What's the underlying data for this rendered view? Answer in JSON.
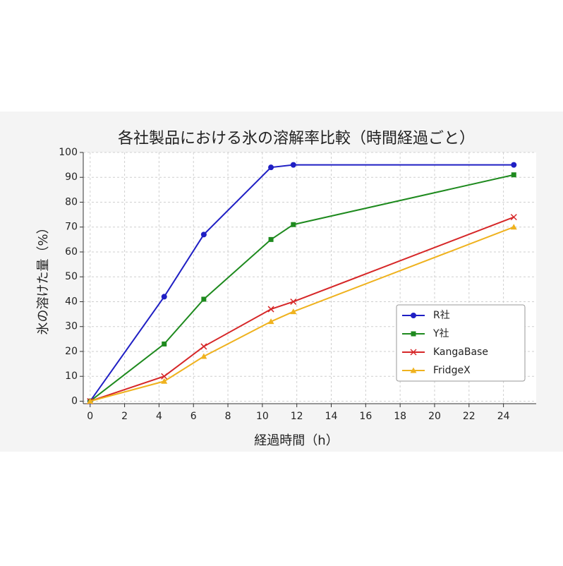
{
  "chart_data": {
    "type": "line",
    "title": "各社製品における氷の溶解率比較（時間経過ごと）",
    "x_label": "経過時間（h）",
    "y_label": "氷の溶けた量（%）",
    "x": [
      0,
      4.3,
      6.6,
      10.5,
      11.8,
      24.6
    ],
    "series": [
      {
        "name": "R社",
        "color": "#1f1fc4",
        "marker": "circle",
        "values": [
          0,
          42,
          67,
          94,
          95,
          95
        ]
      },
      {
        "name": "Y社",
        "color": "#1e8a1e",
        "marker": "square",
        "values": [
          0,
          23,
          41,
          65,
          71,
          91
        ]
      },
      {
        "name": "KangaBase",
        "color": "#d62728",
        "marker": "x",
        "values": [
          0,
          10,
          22,
          37,
          40,
          74
        ]
      },
      {
        "name": "FridgeX",
        "color": "#efb21e",
        "marker": "triangle",
        "values": [
          0,
          8,
          18,
          32,
          36,
          70
        ]
      }
    ],
    "xlim": [
      -0.4,
      25.9
    ],
    "ylim": [
      -1,
      100
    ],
    "xticks": [
      0,
      2,
      4,
      6,
      8,
      10,
      12,
      14,
      16,
      18,
      20,
      22,
      24
    ],
    "yticks": [
      0,
      10,
      20,
      30,
      40,
      50,
      60,
      70,
      80,
      90,
      100
    ],
    "grid": true,
    "legend": "lower right"
  }
}
